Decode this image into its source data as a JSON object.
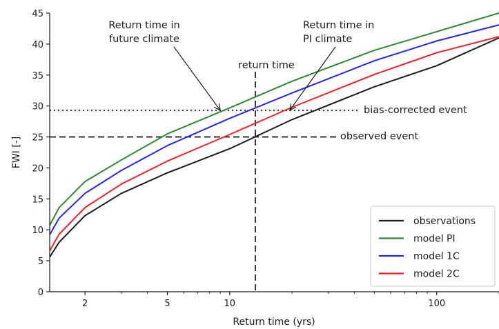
{
  "chart_data": {
    "type": "line",
    "xlabel": "Return time (yrs)",
    "ylabel": "FWI [-]",
    "xscale": "log",
    "xlim": [
      1.35,
      200
    ],
    "ylim": [
      0,
      45
    ],
    "xticks": [
      {
        "value": 2,
        "label": "2"
      },
      {
        "value": 5,
        "label": "5"
      },
      {
        "value": 10,
        "label": "10"
      },
      {
        "value": 100,
        "label": "100"
      }
    ],
    "yticks": [
      {
        "value": 0,
        "label": "0"
      },
      {
        "value": 5,
        "label": "5"
      },
      {
        "value": 10,
        "label": "10"
      },
      {
        "value": 15,
        "label": "15"
      },
      {
        "value": 20,
        "label": "20"
      },
      {
        "value": 25,
        "label": "25"
      },
      {
        "value": 30,
        "label": "30"
      },
      {
        "value": 35,
        "label": "35"
      },
      {
        "value": 40,
        "label": "40"
      },
      {
        "value": 45,
        "label": "45"
      }
    ],
    "x": [
      1.35,
      1.5,
      2,
      3,
      5,
      10,
      20,
      50,
      100,
      200
    ],
    "series": [
      {
        "name": "observations",
        "color": "#1a1a1a",
        "values": [
          5.6,
          8.0,
          12.3,
          15.9,
          19.2,
          23.1,
          27.8,
          33.1,
          36.5,
          41.0
        ]
      },
      {
        "name": "model PI",
        "color": "#2a8a2a",
        "values": [
          10.7,
          13.6,
          17.8,
          21.3,
          25.5,
          29.7,
          34.0,
          39.0,
          42.0,
          45.0
        ]
      },
      {
        "name": "model 1C",
        "color": "#2323f0",
        "values": [
          9.2,
          11.9,
          15.9,
          19.6,
          23.6,
          28.0,
          32.1,
          37.3,
          40.5,
          43.1
        ]
      },
      {
        "name": "model 2C",
        "color": "#ee2222",
        "values": [
          6.6,
          9.3,
          13.6,
          17.4,
          21.1,
          25.4,
          29.8,
          35.1,
          38.6,
          41.2
        ]
      }
    ],
    "reference_lines": [
      {
        "orientation": "horizontal",
        "y": 29.3,
        "style": "dotted",
        "label": "bias-corrected event"
      },
      {
        "orientation": "horizontal",
        "y": 25.0,
        "style": "dashed",
        "label": "observed event"
      },
      {
        "orientation": "vertical",
        "x": 13.3,
        "style": "dashed",
        "label": "return time"
      }
    ],
    "annotations": [
      {
        "text_lines": [
          "Return time in",
          "future climate"
        ],
        "arrow_to": {
          "x": 9.0,
          "y": 29.3
        }
      },
      {
        "text_lines": [
          "Return time in",
          "PI climate"
        ],
        "arrow_to": {
          "x": 19.5,
          "y": 29.3
        }
      }
    ],
    "legend": {
      "placement": "lower-right"
    },
    "grid": false
  }
}
